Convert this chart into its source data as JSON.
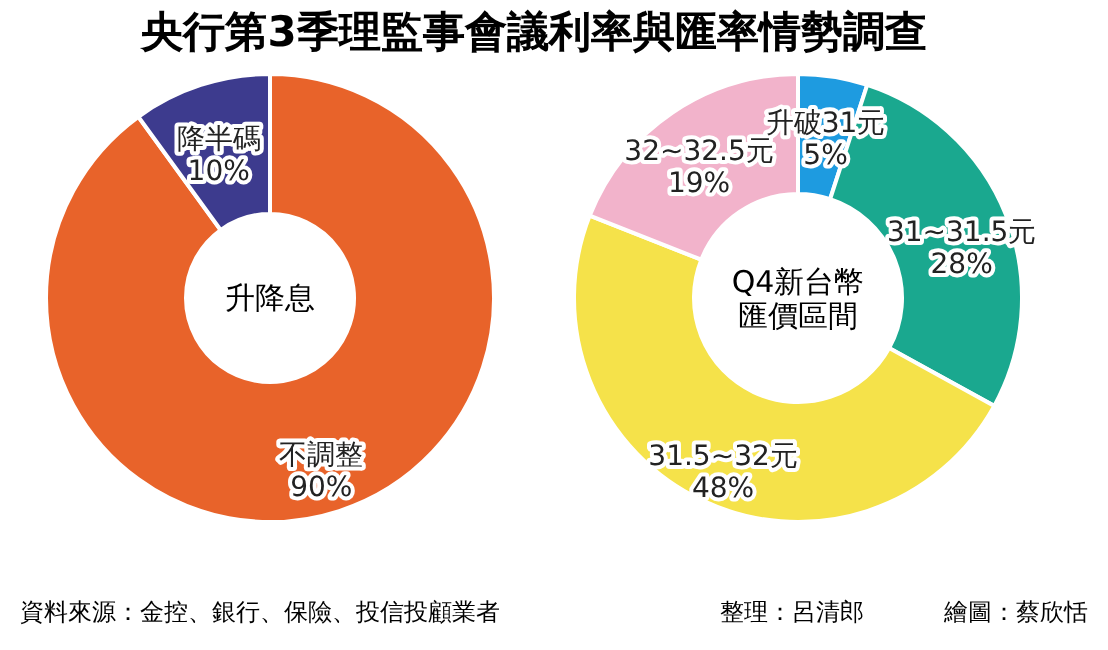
{
  "chart_data": [
    {
      "type": "donut",
      "title": "央行第3季理監事會議利率與匯率情勢調查",
      "subtitle": "升降息",
      "categories": [
        "不調整",
        "降半碼"
      ],
      "values": [
        90,
        10
      ],
      "value_labels": [
        "90%",
        "10%"
      ],
      "colors": [
        "#e8632a",
        "#3d3b8e"
      ],
      "annotations": [
        "資料來源：金控、銀行、保險、投信投顧業者"
      ]
    },
    {
      "type": "donut",
      "subtitle": "Q4新台幣匯價區間",
      "categories": [
        "升破31元",
        "31~31.5元",
        "31.5~32元",
        "32~32.5元"
      ],
      "values": [
        5,
        28,
        48,
        19
      ],
      "value_labels": [
        "5%",
        "28%",
        "48%",
        "19%"
      ],
      "colors": [
        "#1e9be0",
        "#1aa88f",
        "#f5e24a",
        "#f2b3cb"
      ],
      "annotations": [
        "整理：呂清郎",
        "繪圖：蔡欣恬"
      ]
    }
  ]
}
